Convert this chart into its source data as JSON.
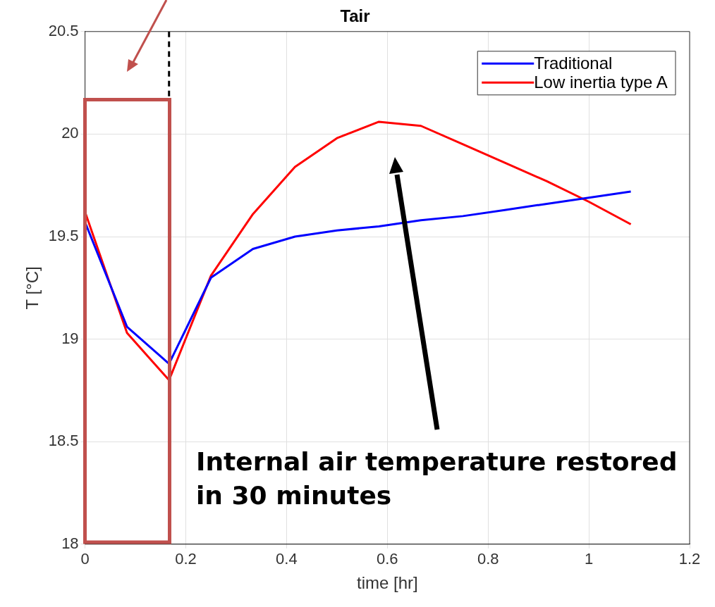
{
  "chart_data": {
    "type": "line",
    "title": "Tair",
    "xlabel": "time [hr]",
    "ylabel": "T [°C]",
    "x": [
      0,
      0.0833,
      0.1667,
      0.25,
      0.3333,
      0.4167,
      0.5,
      0.5833,
      0.6667,
      0.75,
      0.8333,
      0.9167,
      1.0,
      1.0833
    ],
    "series": [
      {
        "name": "Traditional",
        "color": "#0000ff",
        "values": [
          19.57,
          19.06,
          18.88,
          19.3,
          19.44,
          19.5,
          19.53,
          19.55,
          19.58,
          19.6,
          19.63,
          19.66,
          19.69,
          19.72
        ]
      },
      {
        "name": "Low inertia type A",
        "color": "#ff0000",
        "values": [
          19.62,
          19.03,
          18.8,
          19.31,
          19.61,
          19.84,
          19.98,
          20.06,
          20.04,
          19.95,
          19.86,
          19.77,
          19.67,
          19.56
        ]
      }
    ],
    "xlim": [
      0,
      1.2
    ],
    "xticks": [
      0,
      0.2,
      0.4,
      0.6,
      0.8,
      1,
      1.2
    ],
    "ylim": [
      18,
      20.5
    ],
    "yticks": [
      18,
      18.5,
      19,
      19.5,
      20,
      20.5
    ],
    "grid": true,
    "legend": "top right",
    "marker": "none",
    "line_style": "solid",
    "ref_lines": [
      {
        "axis": "x",
        "value": 0.1667,
        "color": "#000000",
        "line_style": "dashed"
      }
    ],
    "annotations": [
      "Internal air temperature restored in 30 minutes"
    ]
  }
}
